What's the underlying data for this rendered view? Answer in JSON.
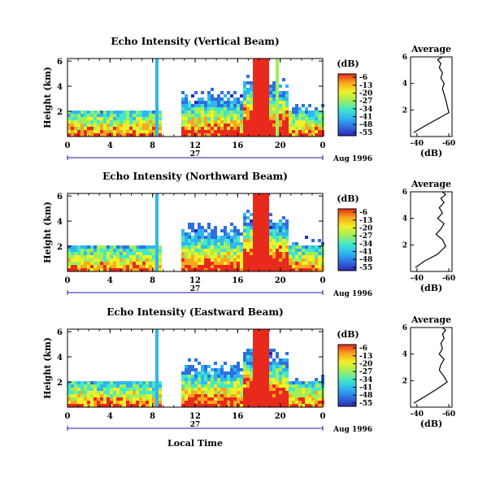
{
  "chart_data": [
    {
      "type": "heatmap",
      "title": "Echo Intensity (Vertical Beam)",
      "ylabel": "Height (km)",
      "xlabel": "",
      "x_ticks": [
        "0",
        "4",
        "8",
        "12",
        "16",
        "20",
        "0"
      ],
      "y_ticks": [
        "2",
        "4",
        "6"
      ],
      "date_bar": {
        "day": "27",
        "month_year": "Aug 1996"
      },
      "xlim": [
        0,
        24
      ],
      "ylim": [
        0,
        6.2
      ],
      "colorbar": {
        "unit": "(dB)",
        "ticks": [
          "-6",
          "-13",
          "-20",
          "-27",
          "-34",
          "-41",
          "-48",
          "-55"
        ],
        "range": [
          -58,
          -3
        ]
      },
      "data_gap_hours": [
        8.6,
        10.4
      ],
      "average_profile": {
        "title": "Average",
        "xlabel": "(dB)",
        "x_ticks": [
          "-40",
          "-60"
        ],
        "y_ticks": [
          "2",
          "4",
          "6"
        ],
        "xlim": [
          -62,
          -36
        ],
        "ylim": [
          0,
          6
        ],
        "x": [
          -38,
          -45,
          -54,
          -60,
          -59,
          -58,
          -57,
          -56,
          -57,
          -55,
          -56,
          -54,
          -55,
          -53,
          -56
        ],
        "y": [
          0.3,
          0.8,
          1.4,
          1.8,
          2.3,
          2.8,
          3.2,
          3.6,
          4.0,
          4.4,
          4.8,
          5.2,
          5.5,
          5.8,
          6.0
        ]
      }
    },
    {
      "type": "heatmap",
      "title": "Echo Intensity (Northward Beam)",
      "ylabel": "Height (km)",
      "xlabel": "",
      "x_ticks": [
        "0",
        "4",
        "8",
        "12",
        "16",
        "20",
        "0"
      ],
      "y_ticks": [
        "2",
        "4",
        "6"
      ],
      "date_bar": {
        "day": "27",
        "month_year": "Aug 1996"
      },
      "xlim": [
        0,
        24
      ],
      "ylim": [
        0,
        6.2
      ],
      "colorbar": {
        "unit": "(dB)",
        "ticks": [
          "-6",
          "-13",
          "-20",
          "-27",
          "-34",
          "-41",
          "-48",
          "-55"
        ],
        "range": [
          -58,
          -3
        ]
      },
      "data_gap_hours": [
        8.6,
        10.4
      ],
      "average_profile": {
        "title": "Average",
        "xlabel": "(dB)",
        "x_ticks": [
          "-40",
          "-60"
        ],
        "y_ticks": [
          "2",
          "4",
          "6"
        ],
        "xlim": [
          -62,
          -36
        ],
        "ylim": [
          0,
          6
        ],
        "x": [
          -39,
          -45,
          -53,
          -58,
          -56,
          -52,
          -55,
          -57,
          -53,
          -56,
          -54,
          -57,
          -55,
          -58,
          -56
        ],
        "y": [
          0.3,
          0.8,
          1.3,
          1.9,
          2.4,
          2.8,
          3.2,
          3.6,
          4.0,
          4.4,
          4.8,
          5.2,
          5.5,
          5.8,
          6.0
        ]
      }
    },
    {
      "type": "heatmap",
      "title": "Echo Intensity (Eastward Beam)",
      "ylabel": "Height (km)",
      "xlabel": "Local Time",
      "x_ticks": [
        "0",
        "4",
        "8",
        "12",
        "16",
        "20",
        "0"
      ],
      "y_ticks": [
        "2",
        "4",
        "6"
      ],
      "date_bar": {
        "day": "27",
        "month_year": "Aug 1996"
      },
      "xlim": [
        0,
        24
      ],
      "ylim": [
        0,
        6.2
      ],
      "colorbar": {
        "unit": "(dB)",
        "ticks": [
          "-6",
          "-13",
          "-20",
          "-27",
          "-34",
          "-41",
          "-48",
          "-55"
        ],
        "range": [
          -58,
          -3
        ]
      },
      "data_gap_hours": [
        8.6,
        10.4
      ],
      "average_profile": {
        "title": "Average",
        "xlabel": "(dB)",
        "x_ticks": [
          "-40",
          "-60"
        ],
        "y_ticks": [
          "2",
          "4",
          "6"
        ],
        "xlim": [
          -62,
          -36
        ],
        "ylim": [
          0,
          6
        ],
        "x": [
          -38,
          -45,
          -53,
          -59,
          -57,
          -54,
          -55,
          -57,
          -54,
          -56,
          -55,
          -57,
          -56,
          -58,
          -56
        ],
        "y": [
          0.3,
          0.8,
          1.4,
          1.9,
          2.3,
          2.8,
          3.2,
          3.6,
          4.0,
          4.4,
          4.8,
          5.2,
          5.5,
          5.8,
          6.0
        ]
      }
    }
  ],
  "colors": {
    "scale": [
      "#2a2ab4",
      "#2f6fe0",
      "#2fb6f0",
      "#42e8c8",
      "#9fef5a",
      "#f0f028",
      "#f7a81c",
      "#e82a1c"
    ]
  }
}
